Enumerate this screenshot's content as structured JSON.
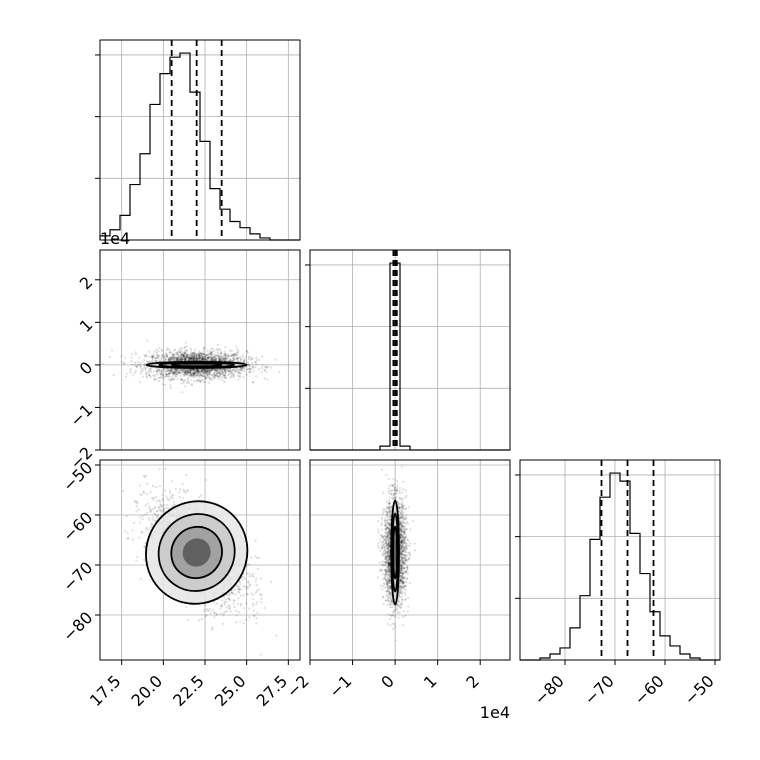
{
  "chart_data": {
    "type": "corner",
    "parameters": [
      {
        "range": [
          16.2,
          28.2
        ],
        "ticks": [
          17.5,
          20.0,
          22.5,
          25.0,
          27.5
        ],
        "tick_labels": [
          "17.5",
          "20.0",
          "22.5",
          "25.0",
          "27.5"
        ],
        "quantiles": [
          20.5,
          22.0,
          23.5
        ],
        "hist": {
          "edges_from": 16.2,
          "bin_width": 0.6,
          "counts": [
            2,
            5,
            12,
            27,
            42,
            66,
            81,
            89,
            91,
            72,
            48,
            25,
            15,
            9,
            6,
            3,
            1,
            0,
            0,
            0
          ]
        }
      },
      {
        "range": [
          -20000,
          27000
        ],
        "ticks": [
          -20000,
          -10000,
          0,
          10000,
          20000
        ],
        "tick_labels": [
          "−2",
          "−1",
          "0",
          "1",
          "2"
        ],
        "offset_text": "1e4",
        "quantiles": [
          -400,
          0,
          400
        ],
        "hist": {
          "edges_from": -20000,
          "bin_width": 2350,
          "counts": [
            0,
            0,
            0,
            0,
            0,
            0,
            0,
            2,
            96,
            2,
            0,
            0,
            0,
            0,
            0,
            0,
            0,
            0,
            0,
            0
          ]
        }
      },
      {
        "range": [
          -89,
          -49
        ],
        "ticks": [
          -80,
          -70,
          -60,
          -50
        ],
        "tick_labels": [
          "−80",
          "−70",
          "−60",
          "−50"
        ],
        "left_tick_labels": [
          "−80",
          "−70",
          "−60",
          "−50"
        ],
        "quantiles": [
          -72.7,
          -67.5,
          -62.3
        ],
        "hist": {
          "edges_from": -89,
          "bin_width": 2,
          "counts": [
            0,
            0,
            1,
            3,
            6,
            16,
            32,
            60,
            81,
            93,
            89,
            63,
            43,
            24,
            12,
            7,
            3,
            1,
            0,
            0
          ]
        }
      }
    ]
  }
}
